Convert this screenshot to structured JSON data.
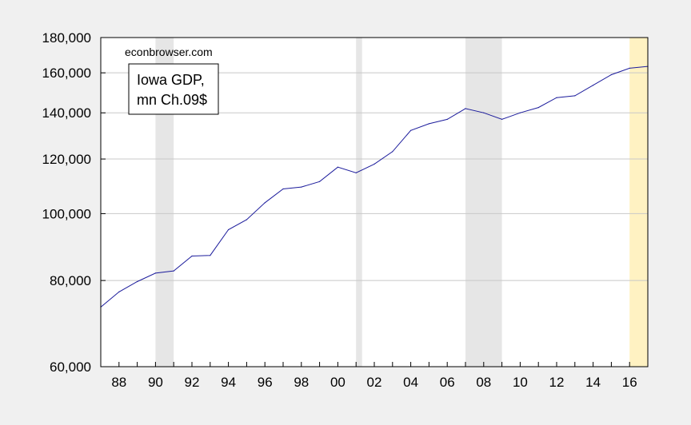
{
  "chart_data": {
    "type": "line",
    "title": "",
    "xlabel": "",
    "ylabel": "",
    "source_label": "econbrowser.com",
    "legend_lines": [
      "Iowa GDP,",
      "mn Ch.09$"
    ],
    "y_scale": "log",
    "ylim": [
      60000,
      180000
    ],
    "xlim": [
      1987,
      2017
    ],
    "y_ticks": [
      60000,
      80000,
      100000,
      120000,
      140000,
      160000,
      180000
    ],
    "y_tick_labels": [
      "60,000",
      "80,000",
      "100,000",
      "120,000",
      "140,000",
      "160,000",
      "180,000"
    ],
    "x_ticks": [
      1988,
      1990,
      1992,
      1994,
      1996,
      1998,
      2000,
      2002,
      2004,
      2006,
      2008,
      2010,
      2012,
      2014,
      2016
    ],
    "x_tick_labels": [
      "88",
      "90",
      "92",
      "94",
      "96",
      "98",
      "00",
      "02",
      "04",
      "06",
      "08",
      "10",
      "12",
      "14",
      "16"
    ],
    "recessions": [
      [
        1990,
        1991
      ],
      [
        2001,
        2001.33
      ],
      [
        2007,
        2009
      ]
    ],
    "forecast_band": [
      2016,
      2017
    ],
    "grid": "horizontal",
    "line_color": "#1c1c9c",
    "recession_color": "#e6e6e6",
    "forecast_color": "#fff2c2",
    "series": [
      {
        "x": [
          1987,
          1988,
          1989,
          1990,
          1991,
          1992,
          1993,
          1994,
          1995,
          1996,
          1997,
          1998,
          1999,
          2000,
          2001,
          2002,
          2003,
          2004,
          2005,
          2006,
          2007,
          2008,
          2009,
          2010,
          2011,
          2012,
          2013,
          2014,
          2015,
          2016,
          2017
        ],
        "y": [
          73200,
          77000,
          79700,
          82000,
          82600,
          86800,
          87000,
          94800,
          98000,
          103700,
          108600,
          109300,
          111300,
          116800,
          114600,
          118000,
          123000,
          132000,
          135000,
          137000,
          142000,
          140000,
          137000,
          140000,
          142500,
          147300,
          148200,
          153500,
          159000,
          162500,
          163500
        ]
      }
    ]
  }
}
